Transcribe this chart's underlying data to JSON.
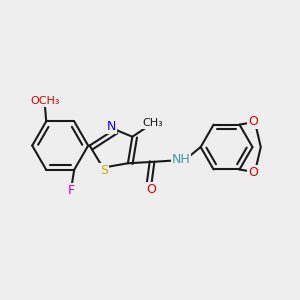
{
  "bg_color": "#eeeeee",
  "bond_color": "#1a1a1a",
  "bond_width": 1.5,
  "S_color": "#ccaa00",
  "N_color": "#0000ee",
  "O_color": "#dd0000",
  "F_color": "#cc00cc",
  "NH_color": "#449999",
  "methyl_label": "CH₃",
  "methoxy_label": "OCH₃",
  "F_label": "F",
  "S_label": "S",
  "N_label": "N",
  "O_label": "O",
  "NH_label": "NH"
}
